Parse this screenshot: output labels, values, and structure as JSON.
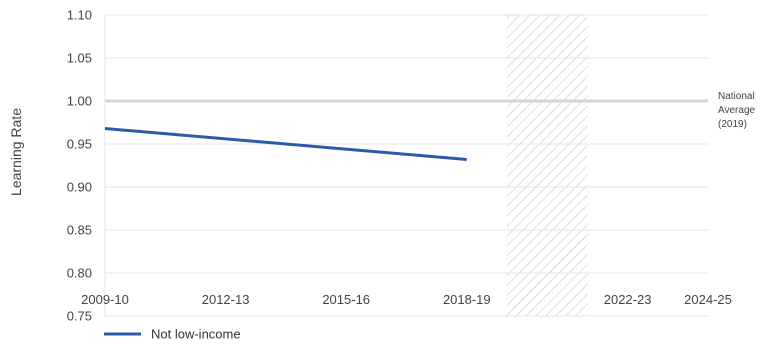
{
  "chart_data": {
    "type": "line",
    "ylabel": "Learning Rate",
    "xlabel": "",
    "ylim": [
      0.75,
      1.1
    ],
    "yticks": [
      "0.75",
      "0.80",
      "0.85",
      "0.90",
      "0.95",
      "1.00",
      "1.05",
      "1.10"
    ],
    "xlim": [
      2009,
      2024
    ],
    "xticks": [
      {
        "value": 2009,
        "label": "2009-10"
      },
      {
        "value": 2012,
        "label": "2012-13"
      },
      {
        "value": 2015,
        "label": "2015-16"
      },
      {
        "value": 2018,
        "label": "2018-19"
      },
      {
        "value": 2022,
        "label": "2022-23"
      },
      {
        "value": 2024,
        "label": "2024-25"
      }
    ],
    "grid": true,
    "reference_line": {
      "value": 1.0,
      "label_lines": [
        "National",
        "Average",
        "(2019)"
      ]
    },
    "shaded_region": {
      "x_start": 2019,
      "x_end": 2021,
      "pattern": "diagonal-hatch"
    },
    "series": [
      {
        "name": "Not low-income",
        "color": "#2b5aa8",
        "x": [
          2009,
          2018
        ],
        "y": [
          0.968,
          0.932
        ]
      }
    ],
    "legend": {
      "position": "bottom-left"
    }
  }
}
